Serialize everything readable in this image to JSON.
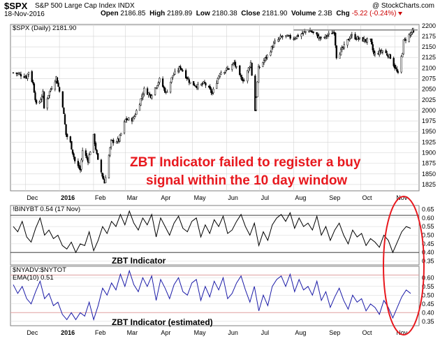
{
  "header": {
    "ticker": "$SPX",
    "description": "S&P 500 Large Cap Index",
    "exchange": "INDX",
    "date": "18-Nov-2016",
    "open_label": "Open",
    "open": "2186.85",
    "high_label": "High",
    "high": "2189.89",
    "low_label": "Low",
    "low": "2180.38",
    "close_label": "Close",
    "close": "2181.90",
    "volume_label": "Volume",
    "volume": "2.3B",
    "chg_label": "Chg",
    "chg": "-5.22 (-0.24%)",
    "watermark": "@ StockCharts.com"
  },
  "colors": {
    "price": "#000000",
    "osc1": "#000000",
    "osc2": "#1c1ca8",
    "annotation": "#e8181e",
    "circle": "#e8181e",
    "grid": "#d4d4d4",
    "sep": "#7f7f7f",
    "hline": "#222222",
    "pline": "#e0a0a0"
  },
  "annotation": {
    "line1": "ZBT Indicator failed to register a buy",
    "line2": "signal within the 10 day window",
    "highlight": "ellipse around Nov-2016 oscillator readings"
  },
  "chart_data": [
    {
      "type": "candlestick",
      "panel": "price",
      "legend": "$SPX (Daily) 2181.90",
      "y_ticks": [
        "2200",
        "2175",
        "2150",
        "2125",
        "2100",
        "2075",
        "2050",
        "2025",
        "2000",
        "1975",
        "1950",
        "1925",
        "1900",
        "1875",
        "1850",
        "1825"
      ],
      "ylim": [
        1810,
        2203
      ],
      "x_labels": [
        "Dec",
        "2016",
        "Feb",
        "Mar",
        "Apr",
        "May",
        "Jun",
        "Jul",
        "Aug",
        "Sep",
        "Oct",
        "Nov"
      ],
      "x_ticks": [
        "2015-12",
        "2016-01",
        "2016-02",
        "2016-03",
        "2016-04",
        "2016-05",
        "2016-06",
        "2016-07",
        "2016-08",
        "2016-09",
        "2016-10",
        "2016-11"
      ],
      "x_range": [
        "2015-11-20",
        "2016-11-18"
      ],
      "grid": true,
      "close_path": [
        [
          "2015-11-20",
          2089
        ],
        [
          "2015-11-25",
          2086
        ],
        [
          "2015-12-02",
          2079
        ],
        [
          "2015-12-04",
          2092
        ],
        [
          "2015-12-08",
          2063
        ],
        [
          "2015-12-11",
          2012
        ],
        [
          "2015-12-14",
          2021
        ],
        [
          "2015-12-17",
          2041
        ],
        [
          "2015-12-18",
          2005
        ],
        [
          "2015-12-22",
          2038
        ],
        [
          "2015-12-29",
          2078
        ],
        [
          "2016-01-04",
          2012
        ],
        [
          "2016-01-07",
          1943
        ],
        [
          "2016-01-11",
          1923
        ],
        [
          "2016-01-15",
          1880
        ],
        [
          "2016-01-20",
          1859
        ],
        [
          "2016-01-22",
          1906
        ],
        [
          "2016-01-27",
          1882
        ],
        [
          "2016-02-01",
          1939
        ],
        [
          "2016-02-05",
          1880
        ],
        [
          "2016-02-11",
          1829
        ],
        [
          "2016-02-17",
          1926
        ],
        [
          "2016-02-24",
          1929
        ],
        [
          "2016-03-01",
          1978
        ],
        [
          "2016-03-08",
          1979
        ],
        [
          "2016-03-14",
          2019
        ],
        [
          "2016-03-18",
          2049
        ],
        [
          "2016-03-24",
          2035
        ],
        [
          "2016-04-01",
          2072
        ],
        [
          "2016-04-07",
          2041
        ],
        [
          "2016-04-13",
          2082
        ],
        [
          "2016-04-20",
          2102
        ],
        [
          "2016-04-29",
          2065
        ],
        [
          "2016-05-06",
          2057
        ],
        [
          "2016-05-12",
          2064
        ],
        [
          "2016-05-19",
          2040
        ],
        [
          "2016-05-26",
          2090
        ],
        [
          "2016-06-03",
          2099
        ],
        [
          "2016-06-08",
          2112
        ],
        [
          "2016-06-13",
          2079
        ],
        [
          "2016-06-17",
          2071
        ],
        [
          "2016-06-23",
          2113
        ],
        [
          "2016-06-27",
          2000
        ],
        [
          "2016-06-30",
          2099
        ],
        [
          "2016-07-08",
          2129
        ],
        [
          "2016-07-15",
          2161
        ],
        [
          "2016-07-22",
          2175
        ],
        [
          "2016-08-01",
          2171
        ],
        [
          "2016-08-15",
          2190
        ],
        [
          "2016-08-26",
          2169
        ],
        [
          "2016-09-07",
          2186
        ],
        [
          "2016-09-09",
          2128
        ],
        [
          "2016-09-15",
          2147
        ],
        [
          "2016-09-22",
          2177
        ],
        [
          "2016-09-30",
          2168
        ],
        [
          "2016-10-10",
          2163
        ],
        [
          "2016-10-13",
          2132
        ],
        [
          "2016-10-21",
          2141
        ],
        [
          "2016-10-28",
          2126
        ],
        [
          "2016-11-04",
          2085
        ],
        [
          "2016-11-08",
          2139
        ],
        [
          "2016-11-09",
          2163
        ],
        [
          "2016-11-15",
          2180
        ],
        [
          "2016-11-17",
          2187
        ],
        [
          "2016-11-18",
          2182
        ]
      ],
      "reference_line": 2190
    },
    {
      "type": "line",
      "panel": "oscillator-1",
      "legend": "!BINYBT 0.54 (17 Nov)",
      "label": "ZBT Indicator",
      "y_ticks": [
        "0.65",
        "0.60",
        "0.55",
        "0.50",
        "0.45",
        "0.40",
        "0.35"
      ],
      "ylim": [
        0.328,
        0.672
      ],
      "threshold_lines": [
        0.615,
        0.4
      ],
      "series": [
        {
          "name": "!BINYBT",
          "values": [
            0.55,
            0.52,
            0.58,
            0.49,
            0.46,
            0.54,
            0.6,
            0.5,
            0.53,
            0.48,
            0.5,
            0.44,
            0.42,
            0.46,
            0.4,
            0.45,
            0.44,
            0.52,
            0.41,
            0.47,
            0.55,
            0.51,
            0.58,
            0.55,
            0.62,
            0.56,
            0.64,
            0.57,
            0.53,
            0.6,
            0.56,
            0.62,
            0.49,
            0.6,
            0.55,
            0.5,
            0.57,
            0.61,
            0.54,
            0.52,
            0.58,
            0.6,
            0.49,
            0.56,
            0.51,
            0.59,
            0.55,
            0.61,
            0.51,
            0.53,
            0.58,
            0.62,
            0.55,
            0.5,
            0.57,
            0.44,
            0.52,
            0.47,
            0.56,
            0.6,
            0.62,
            0.58,
            0.63,
            0.54,
            0.6,
            0.55,
            0.57,
            0.53,
            0.61,
            0.5,
            0.55,
            0.47,
            0.53,
            0.57,
            0.5,
            0.45,
            0.53,
            0.49,
            0.51,
            0.44,
            0.48,
            0.46,
            0.43,
            0.5,
            0.47,
            0.4,
            0.46,
            0.52,
            0.55,
            0.54
          ]
        }
      ]
    },
    {
      "type": "line",
      "panel": "oscillator-2",
      "legend": "$NYADV:$NYTOT",
      "legend2": "EMA(10) 0.51",
      "label": "ZBT Indicator (estimated)",
      "y_ticks": [
        "0.60",
        "0.55",
        "0.50",
        "0.45",
        "0.40",
        "0.35"
      ],
      "ylim": [
        0.325,
        0.665
      ],
      "threshold_lines": [
        0.615,
        0.4
      ],
      "series": [
        {
          "name": "EMA(10)",
          "values": [
            0.56,
            0.51,
            0.55,
            0.48,
            0.45,
            0.52,
            0.58,
            0.48,
            0.51,
            0.44,
            0.46,
            0.39,
            0.36,
            0.4,
            0.36,
            0.4,
            0.38,
            0.46,
            0.36,
            0.44,
            0.54,
            0.5,
            0.57,
            0.53,
            0.62,
            0.55,
            0.64,
            0.56,
            0.52,
            0.6,
            0.55,
            0.61,
            0.47,
            0.59,
            0.54,
            0.48,
            0.56,
            0.6,
            0.52,
            0.5,
            0.57,
            0.59,
            0.47,
            0.55,
            0.49,
            0.58,
            0.53,
            0.6,
            0.48,
            0.51,
            0.57,
            0.61,
            0.53,
            0.46,
            0.55,
            0.41,
            0.5,
            0.44,
            0.55,
            0.59,
            0.61,
            0.55,
            0.62,
            0.52,
            0.59,
            0.53,
            0.55,
            0.5,
            0.58,
            0.47,
            0.52,
            0.43,
            0.49,
            0.54,
            0.47,
            0.42,
            0.5,
            0.46,
            0.48,
            0.41,
            0.45,
            0.43,
            0.39,
            0.47,
            0.43,
            0.37,
            0.43,
            0.49,
            0.53,
            0.51
          ]
        }
      ]
    }
  ]
}
